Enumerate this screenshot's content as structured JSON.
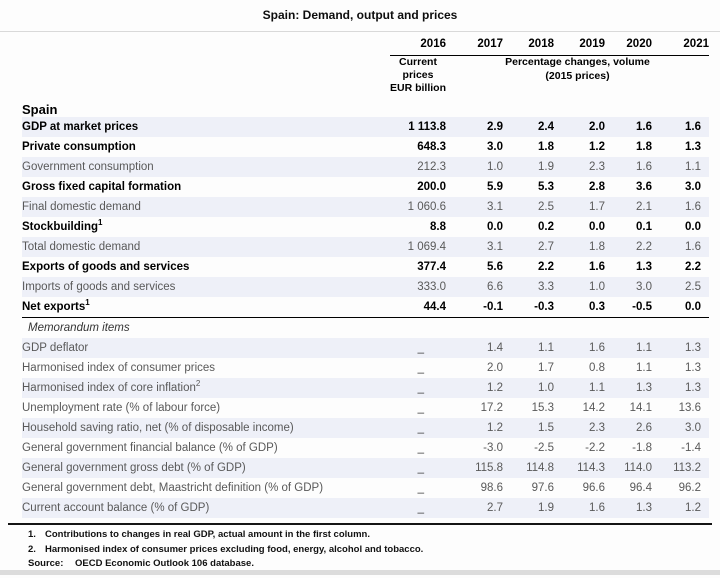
{
  "title": "Spain: Demand, output and prices",
  "header": {
    "country": "Spain",
    "years": [
      "2016",
      "2017",
      "2018",
      "2019",
      "2020",
      "2021"
    ],
    "first_column_unit": "Current\nprices\nEUR billion",
    "volume_unit": "Percentage changes, volume\n(2015 prices)"
  },
  "body_rows": [
    {
      "label": "GDP at market prices",
      "sup": "",
      "indent": 0,
      "bold": true,
      "values": [
        "1 113.8",
        "2.9",
        "2.4",
        "2.0",
        "1.6",
        "1.6"
      ]
    },
    {
      "label": "Private consumption",
      "sup": "",
      "indent": 1,
      "bold": true,
      "values": [
        "648.3",
        "3.0",
        "1.8",
        "1.2",
        "1.8",
        "1.3"
      ]
    },
    {
      "label": "Government consumption",
      "sup": "",
      "indent": 1,
      "bold": false,
      "values": [
        "212.3",
        "1.0",
        "1.9",
        "2.3",
        "1.6",
        "1.1"
      ]
    },
    {
      "label": "Gross fixed capital formation",
      "sup": "",
      "indent": 1,
      "bold": true,
      "values": [
        "200.0",
        "5.9",
        "5.3",
        "2.8",
        "3.6",
        "3.0"
      ]
    },
    {
      "label": "Final domestic demand",
      "sup": "",
      "indent": 1,
      "bold": false,
      "values": [
        "1 060.6",
        "3.1",
        "2.5",
        "1.7",
        "2.1",
        "1.6"
      ]
    },
    {
      "label": "Stockbuilding",
      "sup": "1",
      "indent": 2,
      "bold": true,
      "values": [
        "8.8",
        "0.0",
        "0.2",
        "0.0",
        "0.1",
        "0.0"
      ]
    },
    {
      "label": "Total domestic demand",
      "sup": "",
      "indent": 1,
      "bold": false,
      "values": [
        "1 069.4",
        "3.1",
        "2.7",
        "1.8",
        "2.2",
        "1.6"
      ]
    },
    {
      "label": "Exports of goods and services",
      "sup": "",
      "indent": 1,
      "bold": true,
      "values": [
        "377.4",
        "5.6",
        "2.2",
        "1.6",
        "1.3",
        "2.2"
      ]
    },
    {
      "label": "Imports of goods and services",
      "sup": "",
      "indent": 1,
      "bold": false,
      "values": [
        "333.0",
        "6.6",
        "3.3",
        "1.0",
        "3.0",
        "2.5"
      ]
    },
    {
      "label": "Net exports",
      "sup": "1",
      "indent": 2,
      "bold": true,
      "values": [
        "44.4",
        "-0.1",
        "-0.3",
        "0.3",
        "-0.5",
        "0.0"
      ]
    }
  ],
  "memo_header": "Memorandum items",
  "memo_rows": [
    {
      "label": "GDP deflator",
      "sup": "",
      "values": [
        "_",
        "1.4",
        "1.1",
        "1.6",
        "1.1",
        "1.3"
      ]
    },
    {
      "label": "Harmonised index of consumer prices",
      "sup": "",
      "values": [
        "_",
        "2.0",
        "1.7",
        "0.8",
        "1.1",
        "1.3"
      ]
    },
    {
      "label": "Harmonised index of core inflation",
      "sup": "2",
      "values": [
        "_",
        "1.2",
        "1.0",
        "1.1",
        "1.3",
        "1.3"
      ]
    },
    {
      "label": "Unemployment rate (% of labour force)",
      "sup": "",
      "values": [
        "_",
        "17.2",
        "15.3",
        "14.2",
        "14.1",
        "13.6"
      ]
    },
    {
      "label": "Household saving ratio, net (% of disposable income)",
      "sup": "",
      "values": [
        "_",
        "1.2",
        "1.5",
        "2.3",
        "2.6",
        "3.0"
      ]
    },
    {
      "label": "General government financial balance (% of GDP)",
      "sup": "",
      "values": [
        "_",
        "-3.0",
        "-2.5",
        "-2.2",
        "-1.8",
        "-1.4"
      ]
    },
    {
      "label": "General government gross debt (% of GDP)",
      "sup": "",
      "values": [
        "_",
        "115.8",
        "114.8",
        "114.3",
        "114.0",
        "113.2"
      ]
    },
    {
      "label": "General government debt, Maastricht definition (% of GDP)",
      "sup": "",
      "values": [
        "_",
        "98.6",
        "97.6",
        "96.6",
        "96.4",
        "96.2"
      ]
    },
    {
      "label": "Current account balance (% of GDP)",
      "sup": "",
      "values": [
        "_",
        "2.7",
        "1.9",
        "1.6",
        "1.3",
        "1.2"
      ]
    }
  ],
  "footnotes": [
    {
      "marker": "1.",
      "text": "Contributions to changes in real GDP, actual amount in the first column."
    },
    {
      "marker": "2.",
      "text": "Harmonised index of consumer prices excluding food, energy, alcohol and tobacco."
    }
  ],
  "source": {
    "label": "Source:",
    "text": "OECD Economic Outlook 106 database."
  },
  "colors": {
    "stripe": "#eef0f8",
    "regular_text": "#595959",
    "bold_text": "#000000"
  }
}
